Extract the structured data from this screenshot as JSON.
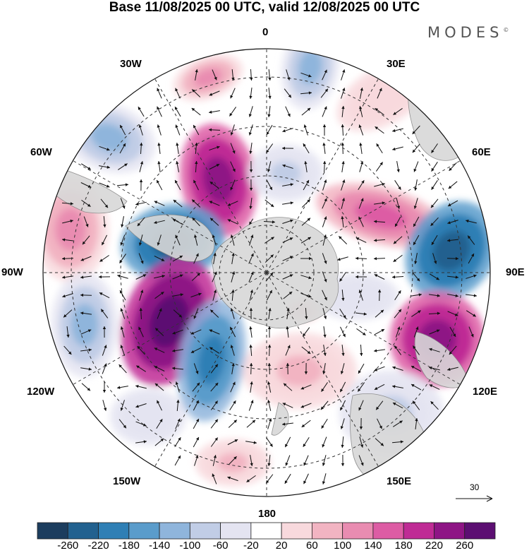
{
  "header": {
    "title": "Base 11/08/2025 00 UTC, valid 12/08/2025 00 UTC",
    "brand": "MODES",
    "brand_mark": "©"
  },
  "longitude_labels": {
    "top": "0",
    "top_right": "30E",
    "right_upper": "60E",
    "right": "90E",
    "right_lower": "120E",
    "bottom_right": "150E",
    "bottom": "180",
    "bottom_left": "150W",
    "left_lower": "120W",
    "left": "90W",
    "left_upper": "60W",
    "top_left": "30W"
  },
  "wind_scale": {
    "value": "30"
  },
  "colorbar": {
    "labels": [
      "-260",
      "-220",
      "-180",
      "-140",
      "-100",
      "-60",
      "-20",
      "20",
      "60",
      "100",
      "140",
      "180",
      "220",
      "260"
    ],
    "colors": [
      "#1c3d5e",
      "#22618f",
      "#2f7fb5",
      "#5a9ccb",
      "#8fb5dc",
      "#c1cde6",
      "#e4e4f1",
      "#ffffff",
      "#f8d9dd",
      "#f2b4c2",
      "#e98cb1",
      "#dd5ca4",
      "#bf2b95",
      "#8e1585",
      "#5c0f72"
    ]
  },
  "map_colors": {
    "land": "#d8d8d8",
    "land_outline": "#888888"
  }
}
